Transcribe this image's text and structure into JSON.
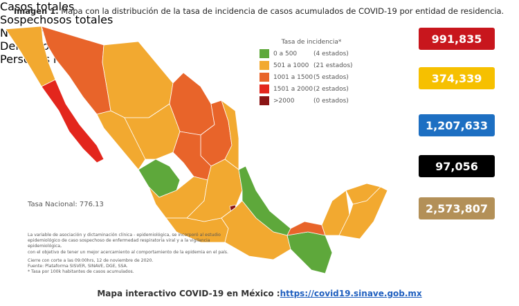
{
  "header": {
    "label": "Imagen 1.",
    "title": "Mapa con la distribución de la tasa de incidencia de casos acumulados de COVID-19 por entidad de residencia."
  },
  "legend": {
    "title": "Tasa de incidencia*",
    "items": [
      {
        "range": "0 a 500",
        "count": "(4 estados)",
        "color": "#5ea83b"
      },
      {
        "range": "501 a 1000",
        "count": "(21 estados)",
        "color": "#f2a930"
      },
      {
        "range": "1001 a 1500",
        "count": "(5 estados)",
        "color": "#e8642a"
      },
      {
        "range": "1501 a 2000",
        "count": "(2 estados)",
        "color": "#e3261d"
      },
      {
        "range": ">2000",
        "count": "(0 estados)",
        "color": "#8a1414"
      }
    ]
  },
  "national_rate": "Tasa Nacional: 776.13",
  "note": [
    "La variable de asociación y dictaminación clínica - epidemiológica, se incorporó al estudio",
    "epidemiológico de caso sospechoso de enfermedad respiratoria viral y a la vigilancia epidemiológica,",
    "con el objetivo de tener un mejor acercamiento al comportamiento de la epidemia en el país.",
    "Cierre con corte a las 09:00hrs, 12 de noviembre de 2020.",
    "Fuente: Plataforma SISVER, SINAVE, DGE, SSA.",
    "* Tasa por 100k habitantes de casos acumulados."
  ],
  "stats": [
    {
      "value": "991,835",
      "label": "Casos totales",
      "color": "#c8161d"
    },
    {
      "value": "374,339",
      "label": "Sospechosos totales",
      "color": "#f6c000"
    },
    {
      "value": "1,207,633",
      "label": "Negativos",
      "color": "#1d6fc2"
    },
    {
      "value": "97,056",
      "label": "Defunciones",
      "color": "#000000"
    },
    {
      "value": "2,573,807",
      "label": "Personas notificadas",
      "color": "#b39058"
    }
  ],
  "footer": {
    "text": "Mapa interactivo COVID-19 en México :",
    "link": "https://covid19.sinave.gob.mx"
  }
}
